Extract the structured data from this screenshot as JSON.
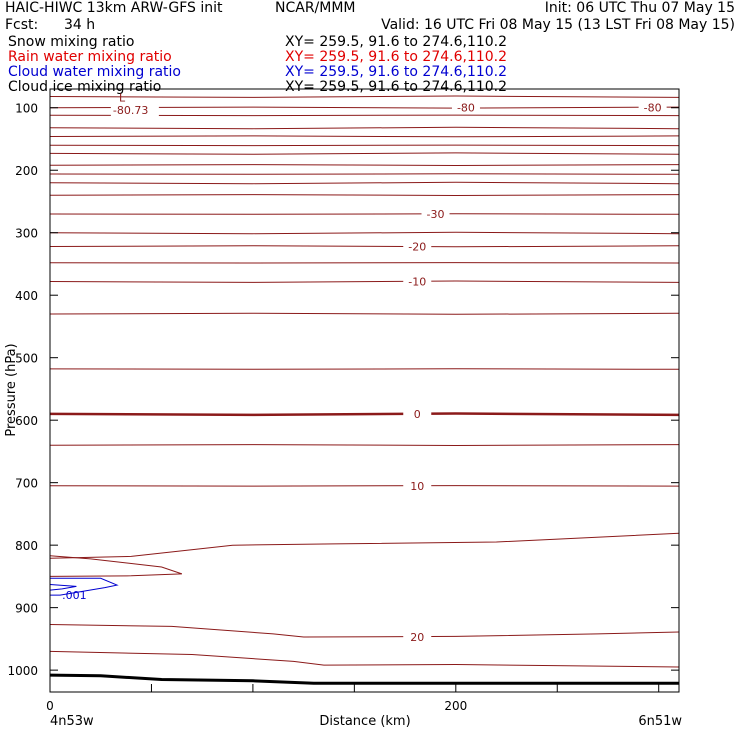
{
  "header": {
    "model": "HAIC-HIWC 13km ARW-GFS init",
    "org": "NCAR/MMM",
    "init": "Init: 06 UTC Thu 07 May 15",
    "fcst_label": "Fcst:",
    "fcst_value": "34 h",
    "valid": "Valid: 16 UTC Fri 08 May 15 (13 LST Fri 08 May 15)"
  },
  "legend": [
    {
      "name": "Snow mixing ratio",
      "xy": "XY= 259.5, 91.6 to 274.6,110.2",
      "color": "#000000"
    },
    {
      "name": "Rain water mixing ratio",
      "xy": "XY= 259.5, 91.6 to 274.6,110.2",
      "color": "#e00000"
    },
    {
      "name": "Cloud water mixing ratio",
      "xy": "XY= 259.5, 91.6 to 274.6,110.2",
      "color": "#0000d0"
    },
    {
      "name": "Cloud ice mixing ratio",
      "xy": "XY= 259.5, 91.6 to 274.6,110.2",
      "color": "#000000"
    }
  ],
  "chart_data": {
    "type": "cross-section contour",
    "xlabel": "Distance (km)",
    "ylabel": "Pressure (hPa)",
    "xlim": [
      0,
      310
    ],
    "ylim": [
      1035,
      70
    ],
    "x_ticks": [
      0,
      200
    ],
    "y_ticks": [
      100,
      200,
      300,
      400,
      500,
      600,
      700,
      800,
      900,
      1000
    ],
    "x_endpoint_labels": [
      "4n53w",
      "6n51w"
    ],
    "temperature_contours": [
      {
        "label": "-80",
        "label_x": [
          205,
          297
        ]
      },
      {
        "label": "-30",
        "label_x": [
          190
        ]
      },
      {
        "label": "-20",
        "label_x": [
          181
        ]
      },
      {
        "label": "-10",
        "label_x": [
          181
        ]
      },
      {
        "label": "0",
        "label_x": [
          181
        ]
      },
      {
        "label": "10",
        "label_x": [
          181
        ]
      },
      {
        "label": "20",
        "label_x": [
          181
        ]
      }
    ],
    "temperature_min_label": {
      "marker": "L",
      "value": "-80.73"
    },
    "cloud_water_contour_label": ".001",
    "colors": {
      "temperature": "#8b1a1a",
      "cloud_water": "#0000d0",
      "terrain": "#000000",
      "frame": "#000000"
    }
  }
}
